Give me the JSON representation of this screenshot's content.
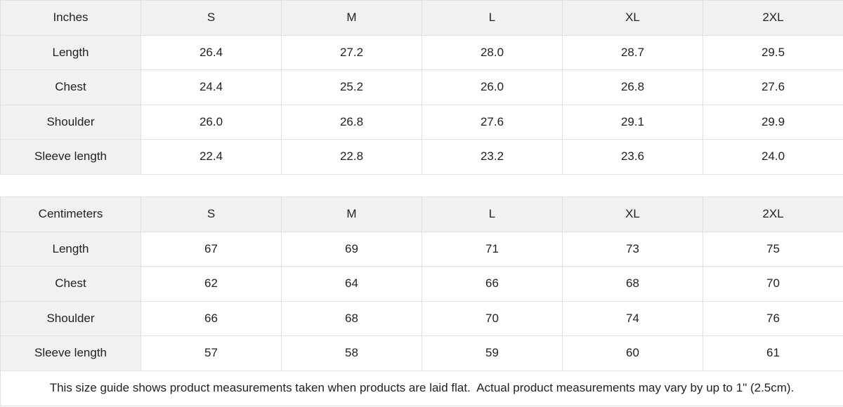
{
  "chart_data": [
    {
      "type": "table",
      "unit": "Inches",
      "columns": [
        "Inches",
        "S",
        "M",
        "L",
        "XL",
        "2XL"
      ],
      "row_labels": [
        "Length",
        "Chest",
        "Shoulder",
        "Sleeve length"
      ],
      "rows": [
        [
          "26.4",
          "27.2",
          "28.0",
          "28.7",
          "29.5"
        ],
        [
          "24.4",
          "25.2",
          "26.0",
          "26.8",
          "27.6"
        ],
        [
          "26.0",
          "26.8",
          "27.6",
          "29.1",
          "29.9"
        ],
        [
          "22.4",
          "22.8",
          "23.2",
          "23.6",
          "24.0"
        ]
      ]
    },
    {
      "type": "table",
      "unit": "Centimeters",
      "columns": [
        "Centimeters",
        "S",
        "M",
        "L",
        "XL",
        "2XL"
      ],
      "row_labels": [
        "Length",
        "Chest",
        "Shoulder",
        "Sleeve length"
      ],
      "rows": [
        [
          "67",
          "69",
          "71",
          "73",
          "75"
        ],
        [
          "62",
          "64",
          "66",
          "68",
          "70"
        ],
        [
          "66",
          "68",
          "70",
          "74",
          "76"
        ],
        [
          "57",
          "58",
          "59",
          "60",
          "61"
        ]
      ]
    }
  ],
  "footer": {
    "note": "This size guide shows product measurements taken when products are laid flat.  Actual product measurements may vary by up to 1\" (2.5cm)."
  },
  "colors": {
    "header_bg": "#f1f1f1",
    "border": "#e0e0e0",
    "cell_bg": "#ffffff",
    "text": "#222222"
  }
}
